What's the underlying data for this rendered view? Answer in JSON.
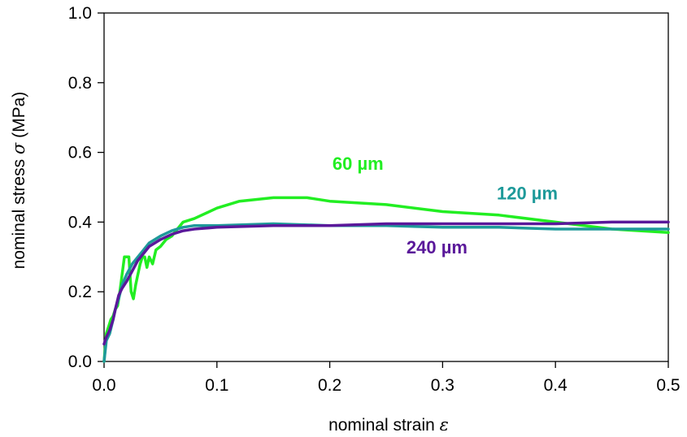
{
  "chart_data": {
    "type": "line",
    "xlabel": {
      "text": "nominal strain",
      "symbol": "ε"
    },
    "ylabel": {
      "text": "nominal stress",
      "symbol": "σ",
      "unit": "(MPa)"
    },
    "xlim": [
      0,
      0.5
    ],
    "ylim": [
      0,
      1.0
    ],
    "xticks": [
      "0.0",
      "0.1",
      "0.2",
      "0.3",
      "0.4",
      "0.5"
    ],
    "yticks": [
      "0.0",
      "0.2",
      "0.4",
      "0.6",
      "0.8",
      "1.0"
    ],
    "grid": false,
    "series": [
      {
        "name": "60 µm",
        "color": "#22ee22",
        "label_at": [
          0.225,
          0.55
        ],
        "x": [
          0.0,
          0.002,
          0.004,
          0.006,
          0.008,
          0.01,
          0.012,
          0.014,
          0.016,
          0.018,
          0.02,
          0.022,
          0.024,
          0.026,
          0.028,
          0.03,
          0.032,
          0.034,
          0.036,
          0.038,
          0.04,
          0.043,
          0.046,
          0.05,
          0.055,
          0.06,
          0.065,
          0.07,
          0.08,
          0.1,
          0.12,
          0.15,
          0.18,
          0.2,
          0.25,
          0.3,
          0.35,
          0.4,
          0.45,
          0.5
        ],
        "y": [
          0.0,
          0.08,
          0.1,
          0.12,
          0.13,
          0.15,
          0.16,
          0.2,
          0.25,
          0.3,
          0.3,
          0.3,
          0.2,
          0.18,
          0.22,
          0.25,
          0.28,
          0.3,
          0.3,
          0.27,
          0.3,
          0.28,
          0.32,
          0.33,
          0.35,
          0.36,
          0.38,
          0.4,
          0.41,
          0.44,
          0.46,
          0.47,
          0.47,
          0.46,
          0.45,
          0.43,
          0.42,
          0.4,
          0.38,
          0.37
        ]
      },
      {
        "name": "120 µm",
        "color": "#1e9a9a",
        "label_at": [
          0.375,
          0.465
        ],
        "x": [
          0.0,
          0.002,
          0.005,
          0.008,
          0.01,
          0.013,
          0.016,
          0.02,
          0.025,
          0.03,
          0.035,
          0.04,
          0.05,
          0.06,
          0.07,
          0.08,
          0.1,
          0.15,
          0.2,
          0.25,
          0.3,
          0.35,
          0.4,
          0.45,
          0.5
        ],
        "y": [
          0.0,
          0.06,
          0.08,
          0.12,
          0.15,
          0.18,
          0.22,
          0.25,
          0.28,
          0.3,
          0.32,
          0.34,
          0.36,
          0.375,
          0.385,
          0.39,
          0.39,
          0.395,
          0.39,
          0.39,
          0.385,
          0.385,
          0.38,
          0.38,
          0.38
        ]
      },
      {
        "name": "240 µm",
        "color": "#5a189a",
        "label_at": [
          0.295,
          0.31
        ],
        "x": [
          0.0,
          0.002,
          0.005,
          0.008,
          0.01,
          0.013,
          0.016,
          0.02,
          0.025,
          0.03,
          0.035,
          0.04,
          0.05,
          0.06,
          0.07,
          0.08,
          0.1,
          0.15,
          0.2,
          0.25,
          0.3,
          0.35,
          0.4,
          0.45,
          0.5
        ],
        "y": [
          0.05,
          0.07,
          0.09,
          0.12,
          0.15,
          0.19,
          0.21,
          0.23,
          0.26,
          0.29,
          0.31,
          0.33,
          0.35,
          0.365,
          0.375,
          0.38,
          0.385,
          0.39,
          0.39,
          0.395,
          0.395,
          0.395,
          0.395,
          0.4,
          0.4
        ]
      }
    ]
  }
}
